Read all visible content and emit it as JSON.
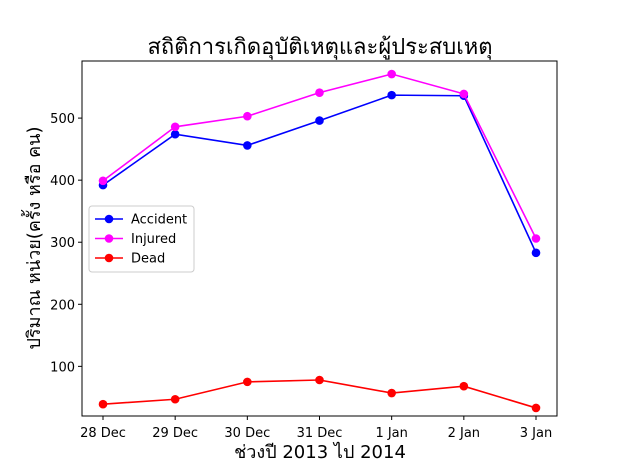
{
  "chart_data": {
    "type": "line",
    "title": "สถิติการเกิดอุบัติเหตุและผู้ประสบเหตุ",
    "xlabel": "ช่วงปี 2013 ไป 2014",
    "ylabel": "ปริมาณ หน่วย(ครั้ง หรือ คน)",
    "categories": [
      "28 Dec",
      "29 Dec",
      "30 Dec",
      "31 Dec",
      "1 Jan",
      "2 Jan",
      "3 Jan"
    ],
    "ylim": [
      20,
      592
    ],
    "yticks": [
      100,
      200,
      300,
      400,
      500
    ],
    "grid": false,
    "legend_position": "center-left",
    "series": [
      {
        "name": "Accident",
        "color": "#0000ff",
        "values": [
          392,
          474,
          456,
          496,
          537,
          536,
          283
        ]
      },
      {
        "name": "Injured",
        "color": "#ff00ff",
        "values": [
          399,
          486,
          503,
          541,
          571,
          539,
          306
        ]
      },
      {
        "name": "Dead",
        "color": "#ff0000",
        "values": [
          39,
          47,
          75,
          78,
          57,
          68,
          33
        ]
      }
    ]
  }
}
